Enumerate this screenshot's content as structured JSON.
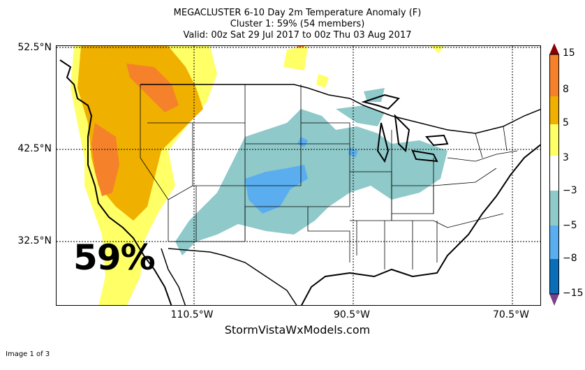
{
  "header": {
    "title_line1": "MEGACLUSTER 6-10 Day 2m Temperature Anomaly (F)",
    "title_line2": "Cluster 1: 59% (54 members)",
    "title_line3": "Valid: 00z Sat 29 Jul 2017 to 00z Thu 03 Aug 2017"
  },
  "map": {
    "region": "CONUS",
    "lat_labels": [
      "52.5°N",
      "42.5°N",
      "32.5°N"
    ],
    "lon_labels": [
      "110.5°W",
      "90.5°W",
      "70.5°W"
    ],
    "overlay_percent": "59%"
  },
  "colorbar": {
    "ticks": [
      "15",
      "8",
      "5",
      "3",
      "−3",
      "−5",
      "−8",
      "−15"
    ],
    "colors": {
      "above_15": "#8b0000",
      "8_15": "#f5822a",
      "5_8": "#f0b000",
      "3_5": "#ffff66",
      "neutral": "#ffffff",
      "-5_-3": "#8fc9c9",
      "-8_-5": "#5aaeef",
      "-15_-8": "#0a6fb8",
      "below_-15": "#7b3f8c"
    }
  },
  "credit": "StormVistaWxModels.com",
  "footer": "Image 1 of 3"
}
